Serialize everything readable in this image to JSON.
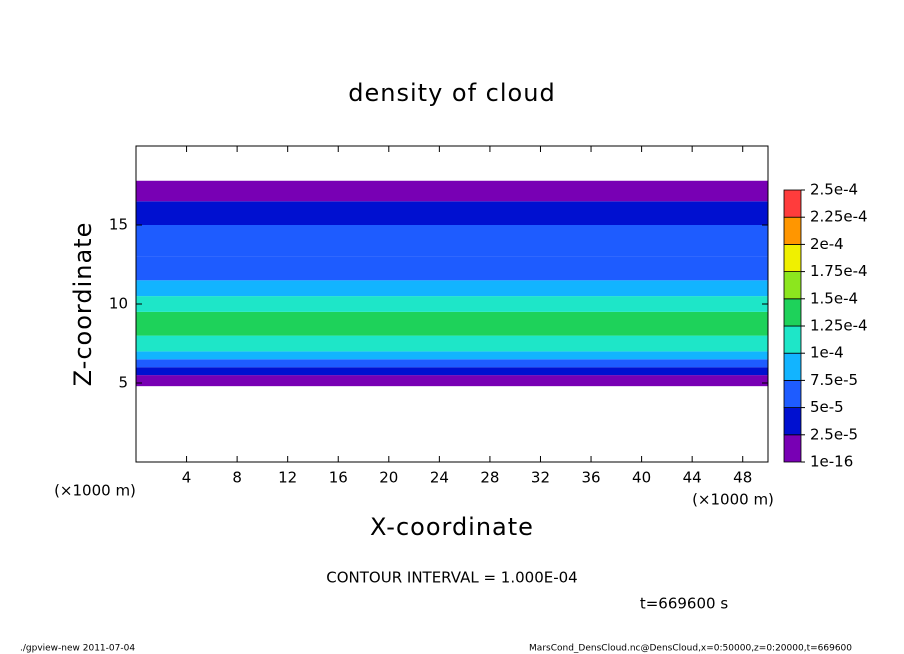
{
  "chart_data": {
    "type": "heatmap-profile",
    "title": "density of cloud",
    "x_label": "X-coordinate",
    "y_label": "Z-coordinate",
    "x_unit": "(×1000 m)",
    "xlim": [
      0,
      50
    ],
    "xticks": [
      4,
      8,
      12,
      16,
      20,
      24,
      28,
      32,
      36,
      40,
      44,
      48
    ],
    "ylim": [
      0,
      20
    ],
    "yticks": [
      5,
      10,
      15
    ],
    "z_bins": [
      4.8,
      5.5,
      6,
      6.5,
      7,
      8,
      9.5,
      10.5,
      11.5,
      13,
      15,
      16.5,
      17.8
    ],
    "values": [
      1e-05,
      3e-05,
      6.5e-05,
      9e-05,
      0.00012,
      0.00014,
      0.000115,
      8.5e-05,
      6.5e-05,
      5.5e-05,
      3.5e-05,
      1e-05
    ],
    "colorbar": {
      "ticks": [
        {
          "value": 1e-16,
          "label": "1e-16"
        },
        {
          "value": 2.5e-05,
          "label": "2.5e-5"
        },
        {
          "value": 5e-05,
          "label": "5e-5"
        },
        {
          "value": 7.5e-05,
          "label": "7.5e-5"
        },
        {
          "value": 0.0001,
          "label": "1e-4"
        },
        {
          "value": 0.000125,
          "label": "1.25e-4"
        },
        {
          "value": 0.00015,
          "label": "1.5e-4"
        },
        {
          "value": 0.000175,
          "label": "1.75e-4"
        },
        {
          "value": 0.0002,
          "label": "2e-4"
        },
        {
          "value": 0.000225,
          "label": "2.25e-4"
        },
        {
          "value": 0.00025,
          "label": "2.5e-4"
        }
      ],
      "colors": [
        "#7800b4",
        "#0010d0",
        "#1e5cff",
        "#12b4ff",
        "#1ee6c8",
        "#1ed25a",
        "#8ce61e",
        "#f0f000",
        "#ff9600",
        "#ff3c3c"
      ]
    },
    "contour_note": "CONTOUR INTERVAL = 1.000E-04",
    "time_note": "t=669600 s",
    "footer_left": "./gpview-new   2011-07-04",
    "footer_right": "MarsCond_DensCloud.nc@DensCloud,x=0:50000,z=0:20000,t=669600"
  }
}
